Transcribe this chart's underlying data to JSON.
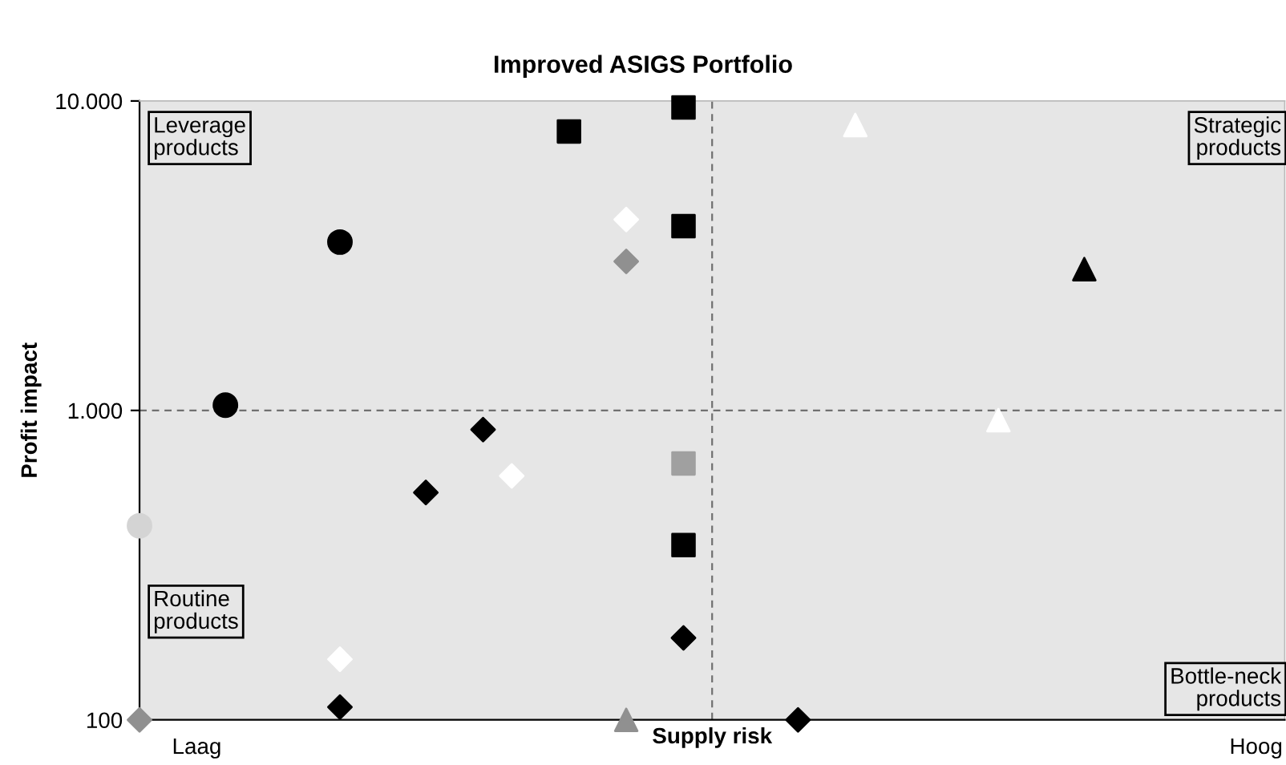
{
  "chart_data": {
    "type": "scatter",
    "title": "Improved ASIGS Portfolio",
    "xlabel": "Supply risk",
    "ylabel": "Profit impact",
    "log": "y",
    "ylim": [
      100,
      10000
    ],
    "yticks": [
      {
        "value": 100,
        "label": "100"
      },
      {
        "value": 1000,
        "label": "1.000"
      },
      {
        "value": 10000,
        "label": "10.000"
      }
    ],
    "categories": [
      null,
      null,
      "Laag",
      null,
      null,
      null,
      null,
      null,
      null,
      null,
      null,
      null,
      null,
      null,
      null,
      null,
      null,
      null,
      null,
      null,
      null,
      null,
      null,
      null,
      null,
      null,
      null,
      null,
      null,
      null,
      null,
      null,
      null,
      null,
      null,
      null,
      null,
      null,
      null,
      "Hoog",
      null
    ],
    "ref_lines": [
      {
        "axis": "y",
        "value": 1000,
        "color": "#707070",
        "line_style": "dashed"
      }
    ],
    "annotations": [
      "Leverage\nproducts",
      "Strategic\nproducts",
      "Routine\nproducts",
      "Bottle-neck\nproducts"
    ],
    "series": [
      {
        "marker": "circle",
        "color": "#000000",
        "values": [
          null,
          null,
          null,
          1040,
          null,
          null,
          null,
          3500,
          null,
          null,
          null,
          null,
          null,
          null,
          null,
          null,
          null,
          null,
          null,
          null,
          null,
          null,
          null,
          null,
          null,
          null,
          null,
          null,
          null,
          null,
          null,
          null,
          null,
          null,
          null,
          null,
          null,
          null,
          null,
          null,
          null
        ]
      },
      {
        "marker": "square",
        "color": "#000000",
        "values": [
          null,
          null,
          null,
          null,
          null,
          null,
          null,
          null,
          null,
          null,
          null,
          null,
          null,
          null,
          null,
          7970,
          null,
          null,
          null,
          9530,
          null,
          null,
          null,
          null,
          null,
          null,
          null,
          null,
          null,
          null,
          null,
          null,
          null,
          null,
          null,
          null,
          null,
          null,
          null,
          null,
          null
        ]
      },
      {
        "marker": "square",
        "color": "#000000",
        "values": [
          null,
          null,
          null,
          null,
          null,
          null,
          null,
          null,
          null,
          null,
          null,
          null,
          null,
          null,
          null,
          null,
          null,
          null,
          null,
          3940,
          null,
          null,
          null,
          null,
          null,
          null,
          null,
          null,
          null,
          null,
          null,
          null,
          null,
          null,
          null,
          null,
          null,
          null,
          null,
          null,
          null
        ]
      },
      {
        "marker": "square",
        "color": "#000000",
        "values": [
          null,
          null,
          null,
          null,
          null,
          null,
          null,
          null,
          null,
          null,
          null,
          null,
          null,
          null,
          null,
          null,
          null,
          null,
          null,
          367,
          null,
          null,
          null,
          null,
          null,
          null,
          null,
          null,
          null,
          null,
          null,
          null,
          null,
          null,
          null,
          null,
          null,
          null,
          null,
          null,
          null
        ]
      },
      {
        "marker": "square",
        "color": "#a0a0a0",
        "values": [
          null,
          null,
          null,
          null,
          null,
          null,
          null,
          null,
          null,
          null,
          null,
          null,
          null,
          null,
          null,
          null,
          null,
          null,
          null,
          674,
          null,
          null,
          null,
          null,
          null,
          null,
          null,
          null,
          null,
          null,
          null,
          null,
          null,
          null,
          null,
          null,
          null,
          null,
          null,
          null,
          null
        ]
      },
      {
        "marker": "diamond",
        "color": "#000000",
        "values": [
          null,
          null,
          null,
          null,
          null,
          null,
          null,
          110,
          null,
          null,
          543,
          null,
          867,
          null,
          null,
          null,
          null,
          null,
          null,
          184,
          null,
          null,
          null,
          100,
          null,
          null,
          null,
          null,
          null,
          null,
          null,
          null,
          null,
          null,
          null,
          null,
          null,
          null,
          null,
          null,
          null
        ]
      },
      {
        "marker": "diamond",
        "color": "#ffffff",
        "values": [
          null,
          null,
          null,
          null,
          null,
          null,
          null,
          157,
          null,
          null,
          null,
          null,
          null,
          614,
          null,
          null,
          null,
          4140,
          null,
          null,
          null,
          null,
          null,
          null,
          null,
          null,
          null,
          null,
          null,
          null,
          null,
          null,
          null,
          null,
          null,
          null,
          null,
          null,
          null,
          null,
          null
        ]
      },
      {
        "marker": "diamond",
        "color": "#909090",
        "values": [
          100,
          null,
          null,
          null,
          null,
          null,
          null,
          null,
          null,
          null,
          null,
          null,
          null,
          null,
          null,
          null,
          null,
          3030,
          null,
          null,
          null,
          null,
          null,
          null,
          null,
          null,
          null,
          null,
          null,
          null,
          null,
          null,
          null,
          null,
          null,
          null,
          null,
          null,
          null,
          null,
          null
        ]
      },
      {
        "marker": "circle",
        "color": "#d4d4d4",
        "values": [
          424,
          null,
          null,
          null,
          null,
          null,
          null,
          null,
          null,
          null,
          null,
          null,
          null,
          null,
          null,
          null,
          null,
          null,
          null,
          null,
          null,
          null,
          null,
          null,
          null,
          null,
          null,
          null,
          null,
          null,
          null,
          null,
          null,
          null,
          null,
          null,
          null,
          null,
          null,
          null,
          null
        ]
      },
      {
        "marker": "triangle",
        "color": "#ffffff",
        "values": [
          null,
          null,
          null,
          null,
          null,
          null,
          null,
          null,
          null,
          null,
          null,
          null,
          null,
          null,
          null,
          null,
          null,
          null,
          null,
          null,
          null,
          null,
          null,
          null,
          null,
          8360,
          null,
          null,
          null,
          null,
          930,
          null,
          null,
          null,
          null,
          null,
          null,
          null,
          null,
          null,
          null
        ]
      },
      {
        "marker": "triangle",
        "color": "#000000",
        "values": [
          null,
          null,
          null,
          null,
          null,
          null,
          null,
          null,
          null,
          null,
          null,
          null,
          null,
          null,
          null,
          null,
          null,
          null,
          null,
          null,
          null,
          null,
          null,
          null,
          null,
          null,
          null,
          null,
          null,
          null,
          null,
          null,
          null,
          2860,
          null,
          null,
          null,
          null,
          null,
          null,
          null
        ]
      },
      {
        "marker": "triangle",
        "color": "#909090",
        "values": [
          null,
          null,
          null,
          null,
          null,
          null,
          null,
          null,
          null,
          null,
          null,
          null,
          null,
          null,
          null,
          null,
          null,
          100,
          null,
          null,
          null,
          null,
          null,
          null,
          null,
          null,
          null,
          null,
          null,
          null,
          null,
          null,
          null,
          null,
          null,
          null,
          null,
          null,
          null,
          null,
          null
        ]
      }
    ]
  }
}
